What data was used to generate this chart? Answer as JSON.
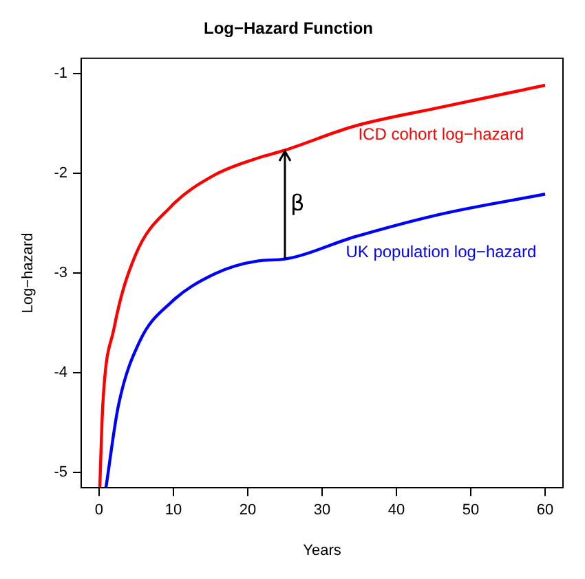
{
  "chart_data": {
    "type": "line",
    "title": "Log−Hazard Function",
    "xlabel": "Years",
    "ylabel": "Log−hazard",
    "xlim": [
      -2.4,
      62.4
    ],
    "ylim": [
      -5.15,
      -0.85
    ],
    "xticks": [
      0,
      10,
      20,
      30,
      40,
      50,
      60
    ],
    "yticks": [
      -5,
      -4,
      -3,
      -2,
      -1
    ],
    "grid": false,
    "legend": false,
    "marker": "none",
    "line_style": "solid",
    "series": [
      {
        "name": "ICD cohort log−hazard",
        "color": "#ff0000",
        "x": [
          0.1,
          0.5,
          2,
          4.9,
          9.6,
          15.5,
          21.3,
          25,
          34.3,
          46,
          60
        ],
        "values": [
          -5.15,
          -4.33,
          -3.56,
          -2.82,
          -2.34,
          -2.02,
          -1.85,
          -1.77,
          -1.53,
          -1.34,
          -1.12
        ]
      },
      {
        "name": "UK population log−hazard",
        "color": "#0000ff",
        "x": [
          0.93,
          2.6,
          5.5,
          9.6,
          15.5,
          21.3,
          25,
          34.3,
          46,
          60
        ],
        "values": [
          -5.15,
          -4.33,
          -3.68,
          -3.3,
          -3.01,
          -2.88,
          -2.86,
          -2.64,
          -2.41,
          -2.21
        ]
      }
    ],
    "annotations": [
      "β"
    ]
  }
}
